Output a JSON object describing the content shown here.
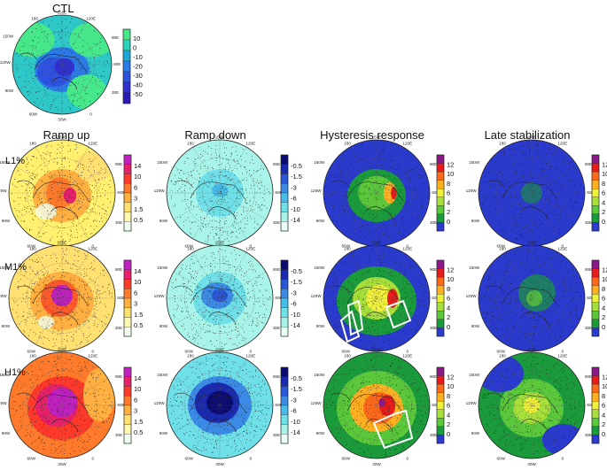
{
  "chart_data": {
    "type": "heatmap",
    "projection": "north-polar-stereographic",
    "ctl": {
      "title": "CTL",
      "colorbar_ticks": [
        "10",
        "0",
        "-10",
        "-20",
        "-30",
        "-40",
        "-50"
      ],
      "colors": [
        "#46e88a",
        "#2ad4b8",
        "#1ea8d8",
        "#2a7ae8",
        "#2e52e0",
        "#3030d0",
        "#2a1ab8"
      ]
    },
    "columns": [
      "Ramp up",
      "Ramp down",
      "Hysteresis response",
      "Late stabilization"
    ],
    "rows": [
      "L1%",
      "M1%",
      "H1%"
    ],
    "colorbars": {
      "ramp_up": {
        "ticks": [
          "14",
          "10",
          "6",
          "3",
          "1.5",
          "0.5"
        ],
        "colors": [
          "#f0fff0",
          "#fff8b0",
          "#ffe070",
          "#ffb040",
          "#ff7a2a",
          "#ff3a2a",
          "#e8206a",
          "#c020c0"
        ]
      },
      "ramp_down": {
        "ticks": [
          "-0.5",
          "-1.5",
          "-3",
          "-6",
          "-10",
          "-14"
        ],
        "colors": [
          "#e8fff8",
          "#a8f4e8",
          "#70e0e8",
          "#48bce8",
          "#3a8ae6",
          "#2a56d8",
          "#1a2ab0",
          "#0a0a70"
        ]
      },
      "hysteresis": {
        "ticks": [
          "12",
          "10",
          "8",
          "6",
          "4",
          "2",
          "0"
        ],
        "colors": [
          "#2a3acc",
          "#1a9a3a",
          "#5ac83a",
          "#a8e03a",
          "#f0f03a",
          "#ffb020",
          "#ff6a1a",
          "#e81a1a",
          "#8a1a8a"
        ]
      }
    },
    "map_labels": {
      "top": "150E",
      "top_left": "180",
      "top_right": "120E",
      "left_upper": "150W",
      "left_mid": "120W",
      "left_lower": "90W",
      "bottom_left": "60W",
      "right_upper": "90E",
      "right_mid": "60E",
      "right_lower": "30E",
      "bottom": "30W",
      "bottom_right": "0"
    },
    "units_note": ""
  }
}
